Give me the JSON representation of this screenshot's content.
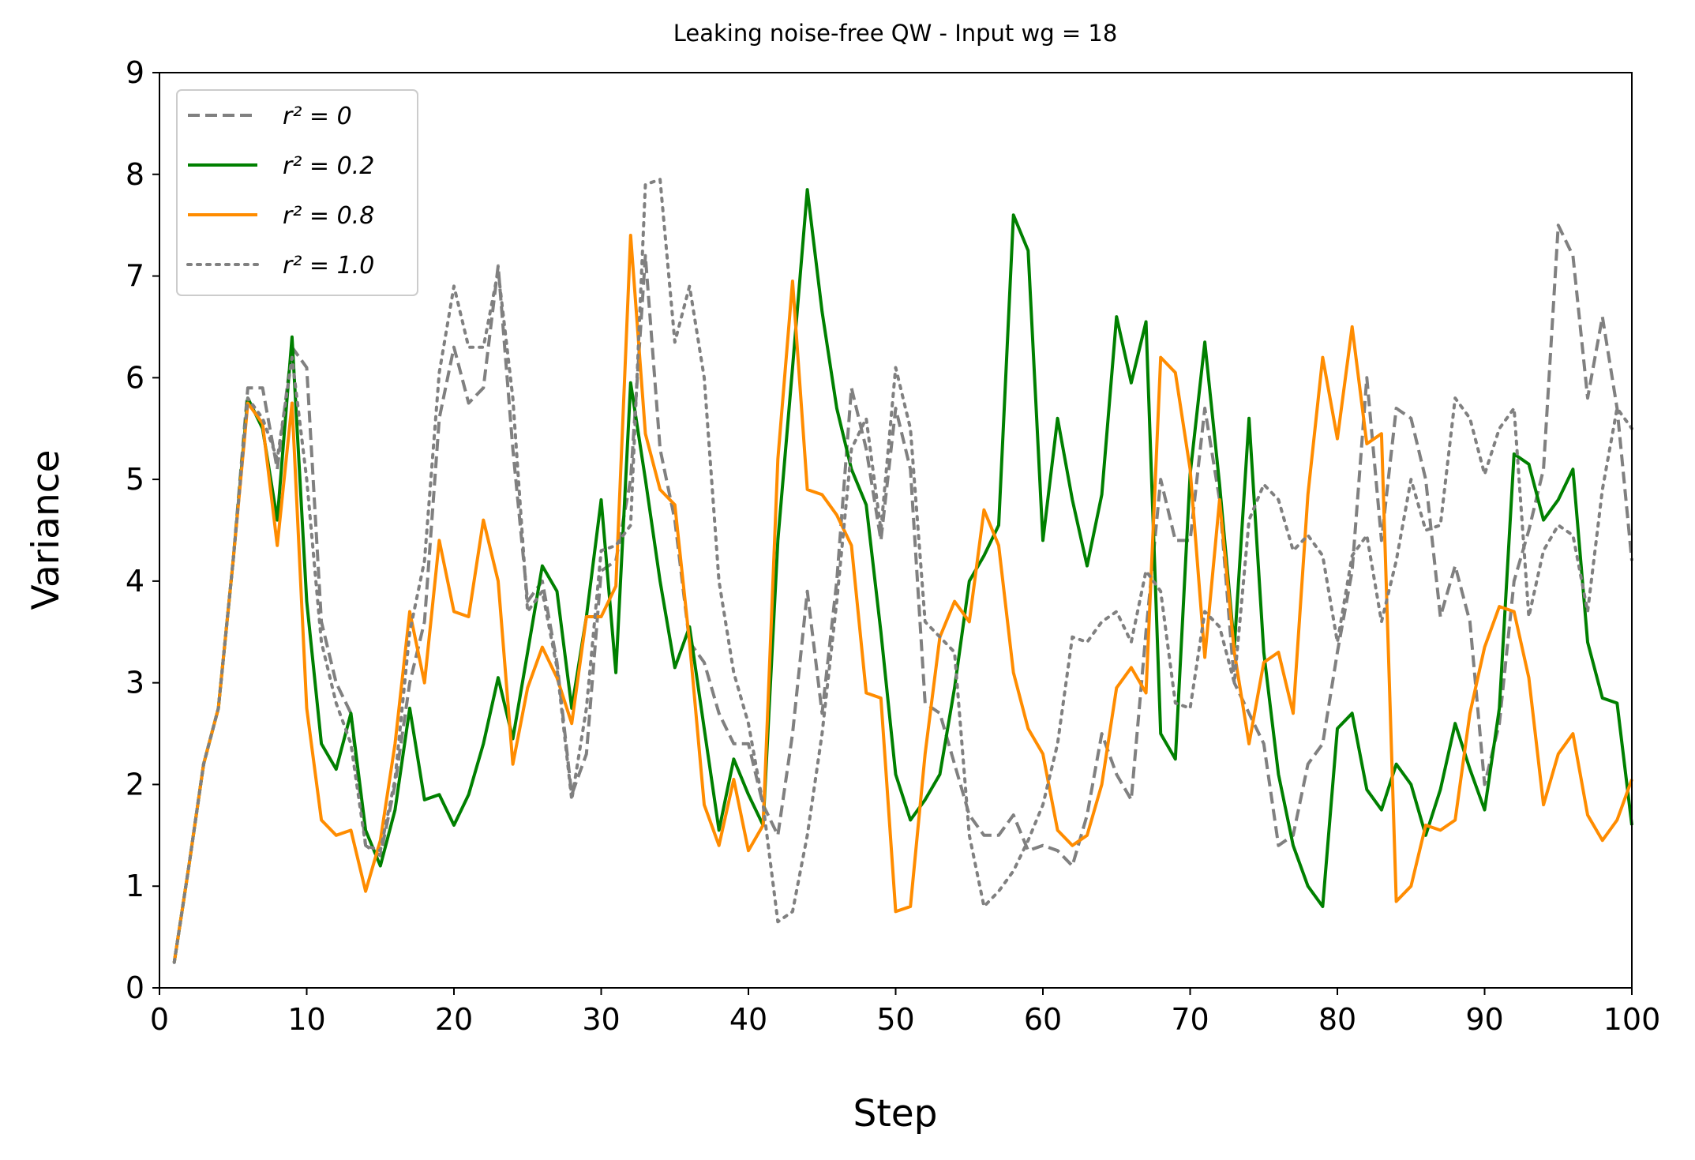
{
  "chart_data": {
    "type": "line",
    "title": "Leaking noise-free QW - Input wg = 18",
    "xlabel": "Step",
    "ylabel": "Variance",
    "xlim": [
      0,
      100
    ],
    "ylim": [
      0,
      9
    ],
    "xticks": [
      0,
      10,
      20,
      30,
      40,
      50,
      60,
      70,
      80,
      90,
      100
    ],
    "yticks": [
      0,
      1,
      2,
      3,
      4,
      5,
      6,
      7,
      8,
      9
    ],
    "grid": false,
    "legend_position": "top-left",
    "x": [
      1,
      2,
      3,
      4,
      5,
      6,
      7,
      8,
      9,
      10,
      11,
      12,
      13,
      14,
      15,
      16,
      17,
      18,
      19,
      20,
      21,
      22,
      23,
      24,
      25,
      26,
      27,
      28,
      29,
      30,
      31,
      32,
      33,
      34,
      35,
      36,
      37,
      38,
      39,
      40,
      41,
      42,
      43,
      44,
      45,
      46,
      47,
      48,
      49,
      50,
      51,
      52,
      53,
      54,
      55,
      56,
      57,
      58,
      59,
      60,
      61,
      62,
      63,
      64,
      65,
      66,
      67,
      68,
      69,
      70,
      71,
      72,
      73,
      74,
      75,
      76,
      77,
      78,
      79,
      80,
      81,
      82,
      83,
      84,
      85,
      86,
      87,
      88,
      89,
      90,
      91,
      92,
      93,
      94,
      95,
      96,
      97,
      98,
      99,
      100
    ],
    "series": [
      {
        "name": "r² = 0",
        "legend_label": "r² = 0",
        "color": "#808080",
        "style": "dashed",
        "values": [
          0.25,
          1.2,
          2.2,
          2.75,
          4.2,
          5.9,
          5.9,
          5.1,
          6.3,
          6.1,
          3.6,
          3.0,
          2.7,
          1.4,
          1.3,
          2.0,
          3.0,
          3.6,
          5.6,
          6.3,
          5.75,
          5.9,
          7.1,
          5.3,
          3.8,
          4.0,
          3.2,
          1.9,
          2.3,
          4.1,
          4.2,
          5.0,
          7.2,
          5.3,
          4.6,
          3.4,
          3.2,
          2.7,
          2.4,
          2.4,
          1.8,
          1.5,
          2.5,
          3.9,
          2.7,
          4.0,
          5.9,
          5.3,
          4.4,
          5.7,
          5.1,
          2.8,
          2.7,
          2.2,
          1.7,
          1.5,
          1.5,
          1.7,
          1.35,
          1.4,
          1.35,
          1.2,
          1.7,
          2.5,
          2.1,
          1.85,
          3.5,
          5.0,
          4.4,
          4.4,
          5.7,
          4.8,
          3.0,
          2.7,
          2.4,
          1.4,
          1.5,
          2.2,
          2.4,
          3.3,
          4.1,
          6.0,
          4.4,
          5.7,
          5.6,
          5.0,
          3.65,
          4.15,
          3.6,
          2.0,
          2.6,
          4.0,
          4.5,
          5.1,
          7.5,
          7.2,
          5.8,
          6.6,
          5.7,
          4.2
        ]
      },
      {
        "name": "r² = 0.2",
        "legend_label": "r² = 0.2",
        "color": "#008000",
        "style": "solid",
        "values": [
          0.25,
          1.2,
          2.2,
          2.75,
          4.2,
          5.8,
          5.5,
          4.6,
          6.4,
          3.8,
          2.4,
          2.15,
          2.7,
          1.55,
          1.2,
          1.75,
          2.75,
          1.85,
          1.9,
          1.6,
          1.9,
          2.4,
          3.05,
          2.45,
          3.3,
          4.15,
          3.9,
          2.75,
          3.65,
          4.8,
          3.1,
          5.95,
          5.0,
          4.0,
          3.15,
          3.55,
          2.55,
          1.55,
          2.25,
          1.9,
          1.6,
          4.4,
          6.1,
          7.85,
          6.65,
          5.7,
          5.1,
          4.75,
          3.5,
          2.1,
          1.65,
          1.85,
          2.1,
          2.95,
          4.0,
          4.25,
          4.55,
          7.6,
          7.25,
          4.4,
          5.6,
          4.8,
          4.15,
          4.85,
          6.6,
          5.95,
          6.55,
          2.5,
          2.25,
          5.05,
          6.35,
          4.95,
          3.35,
          5.6,
          3.3,
          2.1,
          1.4,
          1.0,
          0.8,
          2.55,
          2.7,
          1.95,
          1.75,
          2.2,
          2.0,
          1.5,
          1.95,
          2.6,
          2.15,
          1.75,
          2.75,
          5.25,
          5.15,
          4.6,
          4.8,
          5.1,
          3.4,
          2.85,
          2.8,
          1.6
        ]
      },
      {
        "name": "r² = 0.8",
        "legend_label": "r² = 0.8",
        "color": "#ff8c00",
        "style": "solid",
        "values": [
          0.25,
          1.2,
          2.2,
          2.75,
          4.2,
          5.75,
          5.55,
          4.35,
          5.75,
          2.75,
          1.65,
          1.5,
          1.55,
          0.95,
          1.45,
          2.4,
          3.7,
          3.0,
          4.4,
          3.7,
          3.65,
          4.6,
          4.0,
          2.2,
          2.95,
          3.35,
          3.05,
          2.6,
          3.65,
          3.65,
          3.95,
          7.4,
          5.45,
          4.9,
          4.75,
          3.4,
          1.8,
          1.4,
          2.05,
          1.35,
          1.6,
          5.2,
          6.95,
          4.9,
          4.85,
          4.65,
          4.35,
          2.9,
          2.85,
          0.75,
          0.8,
          2.3,
          3.45,
          3.8,
          3.6,
          4.7,
          4.35,
          3.1,
          2.55,
          2.3,
          1.55,
          1.4,
          1.5,
          2.0,
          2.95,
          3.15,
          2.9,
          6.2,
          6.05,
          5.1,
          3.25,
          4.8,
          3.3,
          2.4,
          3.2,
          3.3,
          2.7,
          4.85,
          6.2,
          5.4,
          6.5,
          5.35,
          5.45,
          0.85,
          1.0,
          1.6,
          1.55,
          1.65,
          2.7,
          3.35,
          3.75,
          3.7,
          3.05,
          1.8,
          2.3,
          2.5,
          1.7,
          1.45,
          1.65,
          2.05
        ]
      },
      {
        "name": "r² = 1.0",
        "legend_label": "r² = 1.0",
        "color": "#808080",
        "style": "dotted",
        "values": [
          0.25,
          1.2,
          2.2,
          2.75,
          4.2,
          5.8,
          5.6,
          5.2,
          6.2,
          5.0,
          3.4,
          2.8,
          2.4,
          1.4,
          1.35,
          2.05,
          3.5,
          4.2,
          6.05,
          6.9,
          6.3,
          6.3,
          7.05,
          5.8,
          3.7,
          3.9,
          3.15,
          1.85,
          2.75,
          4.3,
          4.35,
          4.55,
          7.9,
          7.95,
          6.35,
          6.9,
          6.0,
          4.0,
          3.1,
          2.6,
          1.8,
          0.65,
          0.75,
          1.5,
          2.5,
          3.8,
          5.3,
          5.6,
          4.5,
          6.1,
          5.5,
          3.6,
          3.45,
          3.3,
          1.5,
          0.8,
          0.95,
          1.15,
          1.45,
          1.8,
          2.4,
          3.45,
          3.4,
          3.6,
          3.7,
          3.4,
          4.1,
          3.9,
          2.8,
          2.75,
          3.7,
          3.55,
          3.0,
          4.6,
          4.95,
          4.8,
          4.3,
          4.45,
          4.25,
          3.4,
          4.25,
          4.45,
          3.6,
          4.2,
          5.0,
          4.5,
          4.55,
          5.8,
          5.6,
          5.05,
          5.5,
          5.7,
          3.65,
          4.3,
          4.55,
          4.45,
          3.7,
          4.9,
          5.7,
          5.5
        ]
      }
    ]
  }
}
